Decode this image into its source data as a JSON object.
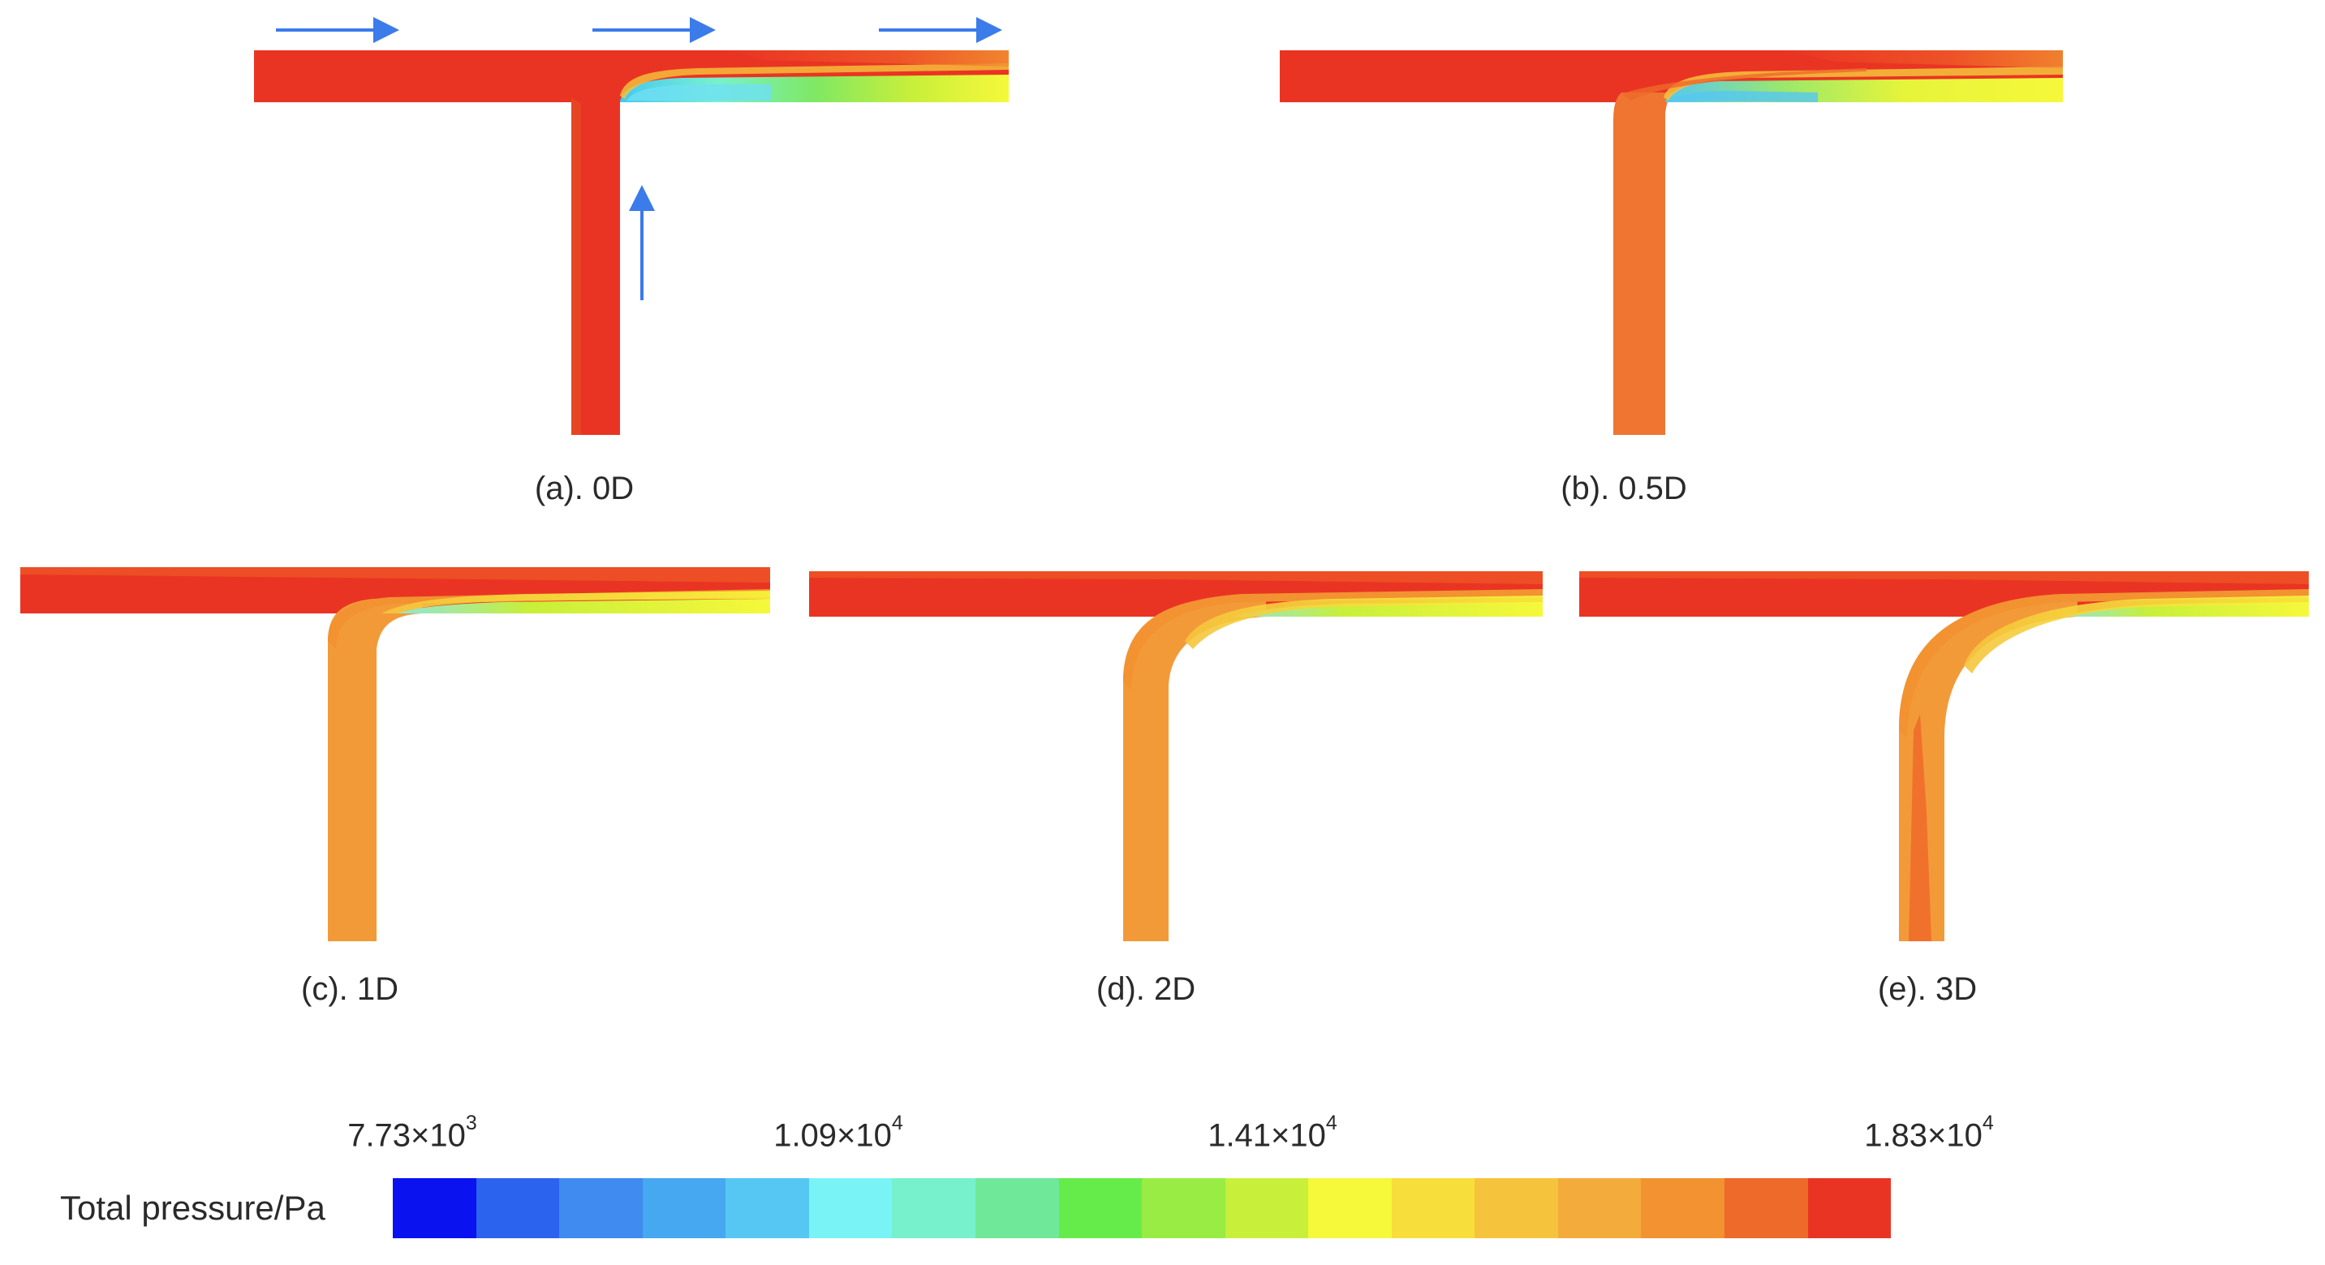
{
  "panels": [
    {
      "caption": "(a). 0D",
      "branch_color": "#ea3423",
      "inflow_arrows": true
    },
    {
      "caption": "(b). 0.5D",
      "branch_color": "#ef7530",
      "inflow_arrows": false
    },
    {
      "caption": "(c). 1D",
      "branch_color": "#f39a38",
      "inflow_arrows": false
    },
    {
      "caption": "(d). 2D",
      "branch_color": "#f39a38",
      "inflow_arrows": false
    },
    {
      "caption": "(e). 3D",
      "branch_color": "#f39a38",
      "inflow_arrows": false
    }
  ],
  "arrow_color": "#3b7bea",
  "colorbar": {
    "title": "Total pressure/Pa",
    "labels": [
      {
        "mantissa": "7.73×10",
        "exp": "3"
      },
      {
        "mantissa": "1.09×10",
        "exp": "4"
      },
      {
        "mantissa": "1.41×10",
        "exp": "4"
      },
      {
        "mantissa": "1.83×10",
        "exp": "4"
      }
    ],
    "colors": [
      "#0a12f0",
      "#2b62ee",
      "#3f8bf0",
      "#46a8f0",
      "#55c7f2",
      "#79f3f5",
      "#77f1cc",
      "#6fe89a",
      "#66ec4a",
      "#98ec43",
      "#c8ef3a",
      "#f6f83a",
      "#f8de3a",
      "#f5c43c",
      "#f3ab3c",
      "#f29231",
      "#ee6a2a",
      "#ea3423"
    ]
  }
}
